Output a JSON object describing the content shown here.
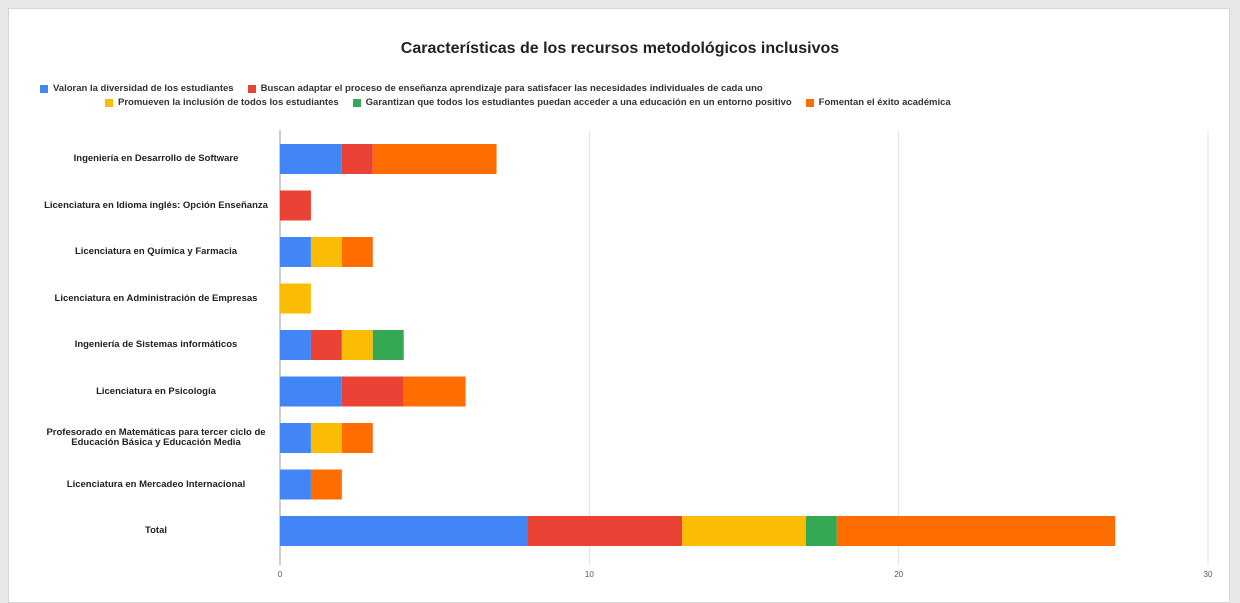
{
  "chart_data": {
    "type": "bar",
    "orientation": "horizontal",
    "stacked": true,
    "title": "Características de los recursos metodológicos inclusivos",
    "legend_position": "top",
    "grid": true,
    "xlim": [
      0,
      30
    ],
    "x_ticks": [
      "0",
      "10",
      "20",
      "30"
    ],
    "categories": [
      "Ingeniería en Desarrollo de Software",
      "Licenciatura en Idioma inglés: Opción Enseñanza",
      "Licenciatura en Química y Farmacia",
      "Licenciatura en Administración de Empresas",
      "Ingeniería de Sistemas informáticos",
      "Licenciatura en Psicología",
      "Profesorado en Matemáticas para tercer ciclo de Educación Básica y Educación Media",
      "Licenciatura en Mercadeo Internacional",
      "Total"
    ],
    "series": [
      {
        "name": "Valoran la diversidad de los estudiantes",
        "color": "#4285F4",
        "values": [
          2,
          0,
          1,
          0,
          1,
          2,
          1,
          1,
          8
        ]
      },
      {
        "name": "Buscan adaptar el proceso de enseñanza aprendizaje para satisfacer las necesidades individuales de cada uno",
        "color": "#EA4335",
        "values": [
          1,
          1,
          0,
          0,
          1,
          2,
          0,
          0,
          5
        ]
      },
      {
        "name": "Promueven la inclusión de todos los estudiantes",
        "color": "#FBBC04",
        "values": [
          0,
          0,
          1,
          1,
          1,
          0,
          1,
          0,
          4
        ]
      },
      {
        "name": "Garantizan que todos los estudiantes puedan acceder a una educación en un entorno positivo",
        "color": "#34A853",
        "values": [
          0,
          0,
          0,
          0,
          1,
          0,
          0,
          0,
          1
        ]
      },
      {
        "name": "Fomentan el éxito académica",
        "color": "#FF6D01",
        "values": [
          4,
          0,
          1,
          0,
          0,
          2,
          1,
          1,
          9
        ]
      }
    ]
  }
}
